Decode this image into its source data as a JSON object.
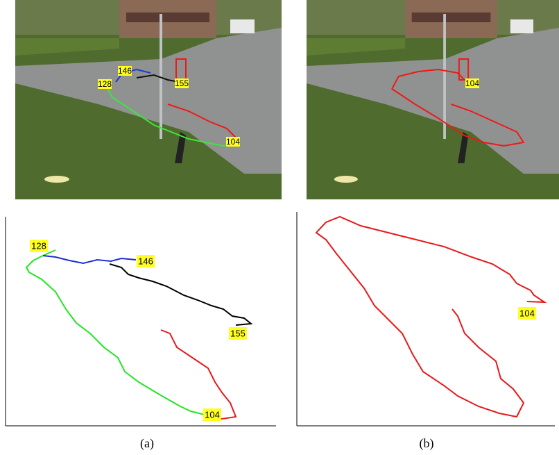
{
  "panels": [
    {
      "photo_labels": [
        "146",
        "128",
        "155",
        "104"
      ],
      "plot_labels": [
        "128",
        "146",
        "155",
        "104"
      ],
      "caption": "(a)"
    },
    {
      "photo_labels": [
        "104"
      ],
      "plot_labels": [
        "104"
      ],
      "caption": "(b)"
    }
  ]
}
